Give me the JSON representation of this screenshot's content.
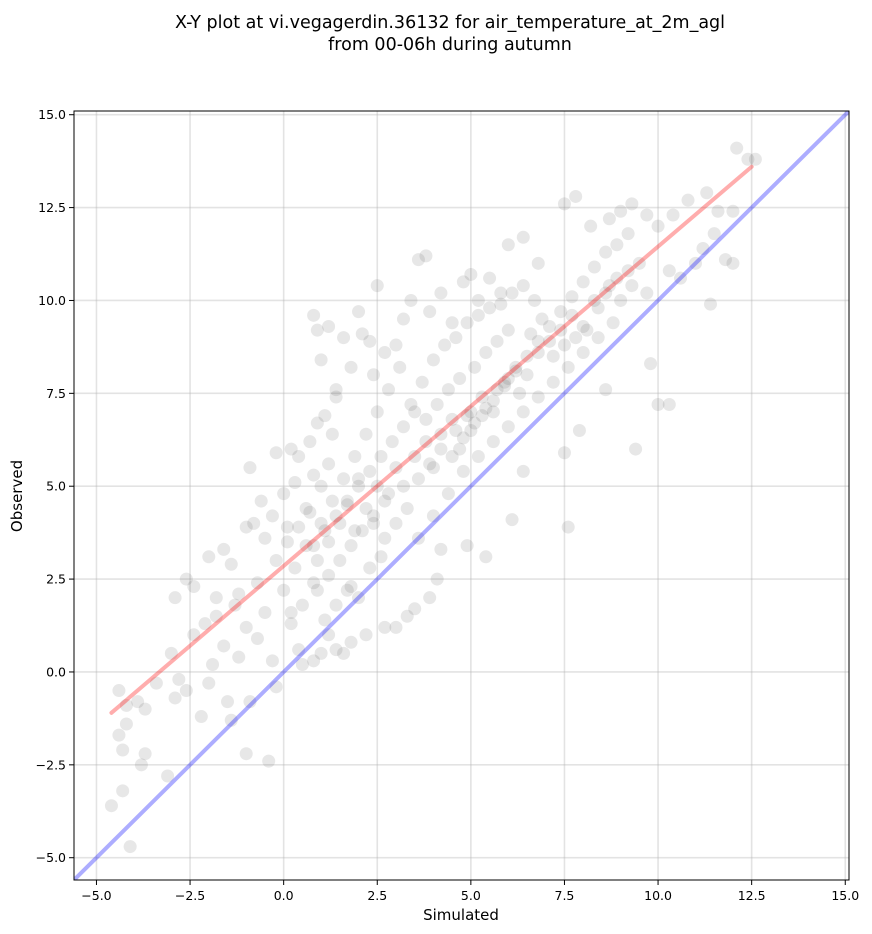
{
  "chart_data": {
    "type": "scatter",
    "title_line1": "X-Y plot at vi.vegagerdin.36132 for air_temperature_at_2m_agl",
    "title_line2": "from 00-06h during autumn",
    "xlabel": "Simulated",
    "ylabel": "Observed",
    "xlim": [
      -5.6,
      15.1
    ],
    "ylim": [
      -5.6,
      15.1
    ],
    "xticks": [
      -5.0,
      -2.5,
      0.0,
      2.5,
      5.0,
      7.5,
      10.0,
      12.5,
      15.0
    ],
    "yticks": [
      -5.0,
      -2.5,
      0.0,
      2.5,
      5.0,
      7.5,
      10.0,
      12.5,
      15.0
    ],
    "xtick_labels": [
      "−5.0",
      "−2.5",
      "0.0",
      "2.5",
      "5.0",
      "7.5",
      "10.0",
      "12.5",
      "15.0"
    ],
    "ytick_labels": [
      "−5.0",
      "−2.5",
      "0.0",
      "2.5",
      "5.0",
      "7.5",
      "10.0",
      "12.5",
      "15.0"
    ],
    "grid": true,
    "point_color": "#555555",
    "point_opacity": 0.14,
    "identity_line": {
      "color": "#0000ff",
      "x": [
        -5.6,
        15.1
      ],
      "y": [
        -5.6,
        15.1
      ]
    },
    "fit_line": {
      "color": "#ff0000",
      "x": [
        -4.6,
        12.5
      ],
      "y": [
        -1.1,
        13.6
      ]
    },
    "points": [
      [
        -4.6,
        -3.6
      ],
      [
        -4.3,
        -3.2
      ],
      [
        -4.1,
        -4.7
      ],
      [
        -4.4,
        -1.7
      ],
      [
        -4.3,
        -2.1
      ],
      [
        -4.2,
        -1.4
      ],
      [
        -4.4,
        -0.5
      ],
      [
        -4.2,
        -0.9
      ],
      [
        -3.8,
        -2.5
      ],
      [
        -3.7,
        -2.2
      ],
      [
        -3.9,
        -0.8
      ],
      [
        -3.7,
        -1.0
      ],
      [
        -3.1,
        -2.8
      ],
      [
        -3.4,
        -0.3
      ],
      [
        -3.0,
        0.5
      ],
      [
        -2.9,
        -0.7
      ],
      [
        -2.8,
        -0.2
      ],
      [
        -2.6,
        -0.5
      ],
      [
        -2.4,
        1.0
      ],
      [
        -2.2,
        -1.2
      ],
      [
        -2.0,
        -0.3
      ],
      [
        -1.9,
        0.2
      ],
      [
        -1.8,
        1.5
      ],
      [
        -1.6,
        0.7
      ],
      [
        -1.5,
        -0.8
      ],
      [
        -1.4,
        -1.3
      ],
      [
        -1.2,
        0.4
      ],
      [
        -1.0,
        -2.2
      ],
      [
        -0.9,
        -0.8
      ],
      [
        -0.7,
        0.9
      ],
      [
        -0.4,
        -2.4
      ],
      [
        -0.3,
        0.3
      ],
      [
        -0.2,
        -0.4
      ],
      [
        0.2,
        1.3
      ],
      [
        0.4,
        0.6
      ],
      [
        0.5,
        0.2
      ],
      [
        0.8,
        0.3
      ],
      [
        1.0,
        0.5
      ],
      [
        1.2,
        1.0
      ],
      [
        1.4,
        0.6
      ],
      [
        -2.9,
        2.0
      ],
      [
        -2.6,
        2.5
      ],
      [
        -2.4,
        2.3
      ],
      [
        -2.1,
        1.3
      ],
      [
        -2.0,
        3.1
      ],
      [
        -1.8,
        2.0
      ],
      [
        -1.6,
        3.3
      ],
      [
        -1.4,
        2.9
      ],
      [
        -1.2,
        2.1
      ],
      [
        -1.0,
        3.9
      ],
      [
        -0.9,
        5.5
      ],
      [
        -0.8,
        4.0
      ],
      [
        -0.6,
        4.6
      ],
      [
        -0.5,
        3.6
      ],
      [
        -0.3,
        4.2
      ],
      [
        -0.2,
        5.9
      ],
      [
        0.0,
        4.8
      ],
      [
        0.1,
        3.9
      ],
      [
        0.2,
        6.0
      ],
      [
        0.3,
        5.1
      ],
      [
        0.4,
        5.8
      ],
      [
        0.6,
        4.4
      ],
      [
        0.7,
        6.2
      ],
      [
        0.8,
        5.3
      ],
      [
        0.9,
        6.7
      ],
      [
        1.0,
        5.0
      ],
      [
        1.1,
        6.9
      ],
      [
        1.2,
        5.6
      ],
      [
        1.3,
        6.4
      ],
      [
        1.4,
        7.4
      ],
      [
        0.8,
        9.6
      ],
      [
        0.9,
        9.2
      ],
      [
        1.0,
        8.4
      ],
      [
        1.2,
        9.3
      ],
      [
        1.4,
        7.6
      ],
      [
        1.6,
        9.0
      ],
      [
        1.8,
        8.2
      ],
      [
        2.0,
        9.7
      ],
      [
        2.1,
        9.1
      ],
      [
        2.3,
        8.9
      ],
      [
        2.5,
        10.4
      ],
      [
        2.4,
        8.0
      ],
      [
        2.7,
        8.6
      ],
      [
        3.0,
        8.8
      ],
      [
        3.2,
        9.5
      ],
      [
        3.4,
        10.0
      ],
      [
        3.6,
        11.1
      ],
      [
        3.8,
        11.2
      ],
      [
        3.9,
        9.7
      ],
      [
        4.2,
        10.2
      ],
      [
        4.5,
        9.4
      ],
      [
        4.8,
        10.5
      ],
      [
        5.0,
        10.7
      ],
      [
        5.2,
        10.0
      ],
      [
        5.5,
        10.6
      ],
      [
        5.8,
        10.2
      ],
      [
        6.0,
        11.5
      ],
      [
        6.4,
        11.7
      ],
      [
        6.8,
        11.0
      ],
      [
        7.5,
        12.6
      ],
      [
        7.8,
        12.8
      ],
      [
        8.2,
        12.0
      ],
      [
        8.7,
        12.2
      ],
      [
        9.0,
        12.4
      ],
      [
        9.3,
        12.6
      ],
      [
        9.7,
        12.3
      ],
      [
        10.0,
        12.0
      ],
      [
        10.4,
        12.3
      ],
      [
        10.8,
        12.7
      ],
      [
        11.3,
        12.9
      ],
      [
        11.6,
        12.4
      ],
      [
        12.0,
        12.4
      ],
      [
        12.1,
        14.1
      ],
      [
        12.4,
        13.8
      ],
      [
        12.6,
        13.8
      ],
      [
        11.5,
        11.8
      ],
      [
        11.2,
        11.4
      ],
      [
        10.6,
        10.6
      ],
      [
        10.3,
        10.8
      ],
      [
        9.7,
        10.2
      ],
      [
        11.0,
        11.0
      ],
      [
        11.8,
        11.1
      ],
      [
        12.0,
        11.0
      ],
      [
        11.4,
        9.9
      ],
      [
        10.0,
        7.2
      ],
      [
        10.3,
        7.2
      ],
      [
        9.4,
        6.0
      ],
      [
        9.8,
        8.3
      ],
      [
        8.6,
        7.6
      ],
      [
        7.6,
        3.9
      ],
      [
        7.9,
        6.5
      ],
      [
        7.5,
        5.9
      ],
      [
        6.4,
        5.4
      ],
      [
        6.1,
        4.1
      ],
      [
        5.4,
        3.1
      ],
      [
        4.9,
        3.4
      ],
      [
        4.2,
        3.3
      ],
      [
        3.9,
        2.0
      ],
      [
        4.1,
        2.5
      ],
      [
        3.5,
        1.7
      ],
      [
        3.0,
        1.2
      ],
      [
        2.7,
        1.2
      ],
      [
        3.3,
        1.5
      ],
      [
        2.2,
        1.0
      ],
      [
        1.8,
        0.8
      ],
      [
        1.6,
        0.5
      ],
      [
        2.0,
        2.0
      ],
      [
        1.8,
        2.3
      ],
      [
        2.3,
        2.8
      ],
      [
        2.6,
        3.1
      ],
      [
        0.9,
        3.0
      ],
      [
        1.2,
        3.5
      ],
      [
        1.5,
        4.0
      ],
      [
        1.7,
        4.5
      ],
      [
        1.9,
        3.8
      ],
      [
        2.2,
        4.4
      ],
      [
        2.5,
        5.0
      ],
      [
        2.7,
        4.6
      ],
      [
        3.0,
        5.5
      ],
      [
        3.2,
        5.0
      ],
      [
        3.5,
        5.8
      ],
      [
        3.8,
        6.2
      ],
      [
        4.0,
        5.5
      ],
      [
        4.2,
        6.4
      ],
      [
        4.5,
        6.8
      ],
      [
        4.7,
        6.0
      ],
      [
        5.0,
        7.0
      ],
      [
        5.3,
        7.4
      ],
      [
        5.6,
        7.0
      ],
      [
        5.9,
        7.8
      ],
      [
        6.2,
        8.2
      ],
      [
        6.5,
        8.0
      ],
      [
        6.8,
        8.6
      ],
      [
        7.1,
        8.9
      ],
      [
        7.4,
        9.2
      ],
      [
        7.7,
        9.6
      ],
      [
        8.0,
        9.3
      ],
      [
        8.3,
        10.0
      ],
      [
        8.6,
        10.2
      ],
      [
        8.9,
        10.6
      ],
      [
        9.2,
        10.8
      ],
      [
        9.5,
        11.0
      ],
      [
        2.0,
        5.2
      ],
      [
        2.4,
        4.0
      ],
      [
        2.8,
        4.8
      ],
      [
        3.3,
        4.4
      ],
      [
        3.6,
        3.6
      ],
      [
        4.0,
        4.2
      ],
      [
        4.4,
        4.8
      ],
      [
        4.8,
        5.4
      ],
      [
        5.2,
        5.8
      ],
      [
        5.6,
        6.2
      ],
      [
        6.0,
        6.6
      ],
      [
        6.4,
        7.0
      ],
      [
        6.8,
        7.4
      ],
      [
        7.2,
        7.8
      ],
      [
        7.6,
        8.2
      ],
      [
        8.0,
        8.6
      ],
      [
        8.4,
        9.0
      ],
      [
        8.8,
        9.4
      ],
      [
        1.0,
        4.0
      ],
      [
        1.3,
        4.6
      ],
      [
        1.6,
        5.2
      ],
      [
        1.9,
        5.8
      ],
      [
        2.2,
        6.4
      ],
      [
        2.5,
        7.0
      ],
      [
        2.8,
        7.6
      ],
      [
        3.1,
        8.2
      ],
      [
        3.4,
        7.2
      ],
      [
        3.7,
        7.8
      ],
      [
        4.0,
        8.4
      ],
      [
        4.3,
        8.8
      ],
      [
        4.6,
        9.0
      ],
      [
        4.9,
        9.4
      ],
      [
        5.2,
        9.6
      ],
      [
        5.5,
        9.8
      ],
      [
        5.8,
        9.9
      ],
      [
        6.1,
        10.2
      ],
      [
        6.4,
        10.4
      ],
      [
        6.7,
        10.0
      ],
      [
        0.3,
        2.8
      ],
      [
        0.6,
        3.4
      ],
      [
        0.9,
        2.2
      ],
      [
        1.2,
        2.6
      ],
      [
        1.5,
        3.0
      ],
      [
        1.8,
        3.4
      ],
      [
        2.1,
        3.8
      ],
      [
        2.4,
        4.2
      ],
      [
        2.7,
        3.6
      ],
      [
        3.0,
        4.0
      ],
      [
        0.0,
        2.2
      ],
      [
        0.2,
        1.6
      ],
      [
        0.5,
        1.8
      ],
      [
        0.8,
        2.4
      ],
      [
        1.1,
        1.4
      ],
      [
        1.4,
        1.8
      ],
      [
        1.7,
        2.2
      ],
      [
        -0.5,
        1.6
      ],
      [
        -0.7,
        2.4
      ],
      [
        -1.0,
        1.2
      ],
      [
        -1.3,
        1.8
      ],
      [
        -0.2,
        3.0
      ],
      [
        0.1,
        3.5
      ],
      [
        0.4,
        3.9
      ],
      [
        0.7,
        4.3
      ],
      [
        5.0,
        6.5
      ],
      [
        5.3,
        6.9
      ],
      [
        5.6,
        7.3
      ],
      [
        5.9,
        7.7
      ],
      [
        6.2,
        8.1
      ],
      [
        6.5,
        8.5
      ],
      [
        6.8,
        8.9
      ],
      [
        7.1,
        9.3
      ],
      [
        7.4,
        9.7
      ],
      [
        7.7,
        10.1
      ],
      [
        8.0,
        10.5
      ],
      [
        8.3,
        10.9
      ],
      [
        8.6,
        11.3
      ],
      [
        8.9,
        11.5
      ],
      [
        9.2,
        11.8
      ],
      [
        6.6,
        9.1
      ],
      [
        6.9,
        9.5
      ],
      [
        7.2,
        8.5
      ],
      [
        7.5,
        8.8
      ],
      [
        7.8,
        9.0
      ],
      [
        8.1,
        9.2
      ],
      [
        8.4,
        9.8
      ],
      [
        8.7,
        10.4
      ],
      [
        9.0,
        10.0
      ],
      [
        9.3,
        10.4
      ],
      [
        3.8,
        6.8
      ],
      [
        4.1,
        7.2
      ],
      [
        4.4,
        7.6
      ],
      [
        4.7,
        7.9
      ],
      [
        5.1,
        8.2
      ],
      [
        5.4,
        8.6
      ],
      [
        5.7,
        8.9
      ],
      [
        6.0,
        9.2
      ],
      [
        4.6,
        6.5
      ],
      [
        4.9,
        6.9
      ],
      [
        3.6,
        5.2
      ],
      [
        3.9,
        5.6
      ],
      [
        4.2,
        6.0
      ],
      [
        4.5,
        5.8
      ],
      [
        4.8,
        6.3
      ],
      [
        5.1,
        6.7
      ],
      [
        5.4,
        7.1
      ],
      [
        5.7,
        7.6
      ],
      [
        6.0,
        7.9
      ],
      [
        6.3,
        7.5
      ],
      [
        2.9,
        6.2
      ],
      [
        3.2,
        6.6
      ],
      [
        3.5,
        7.0
      ],
      [
        2.6,
        5.8
      ],
      [
        2.3,
        5.4
      ],
      [
        2.0,
        5.0
      ],
      [
        1.7,
        4.6
      ],
      [
        1.4,
        4.2
      ],
      [
        1.1,
        3.8
      ],
      [
        0.8,
        3.4
      ]
    ]
  }
}
